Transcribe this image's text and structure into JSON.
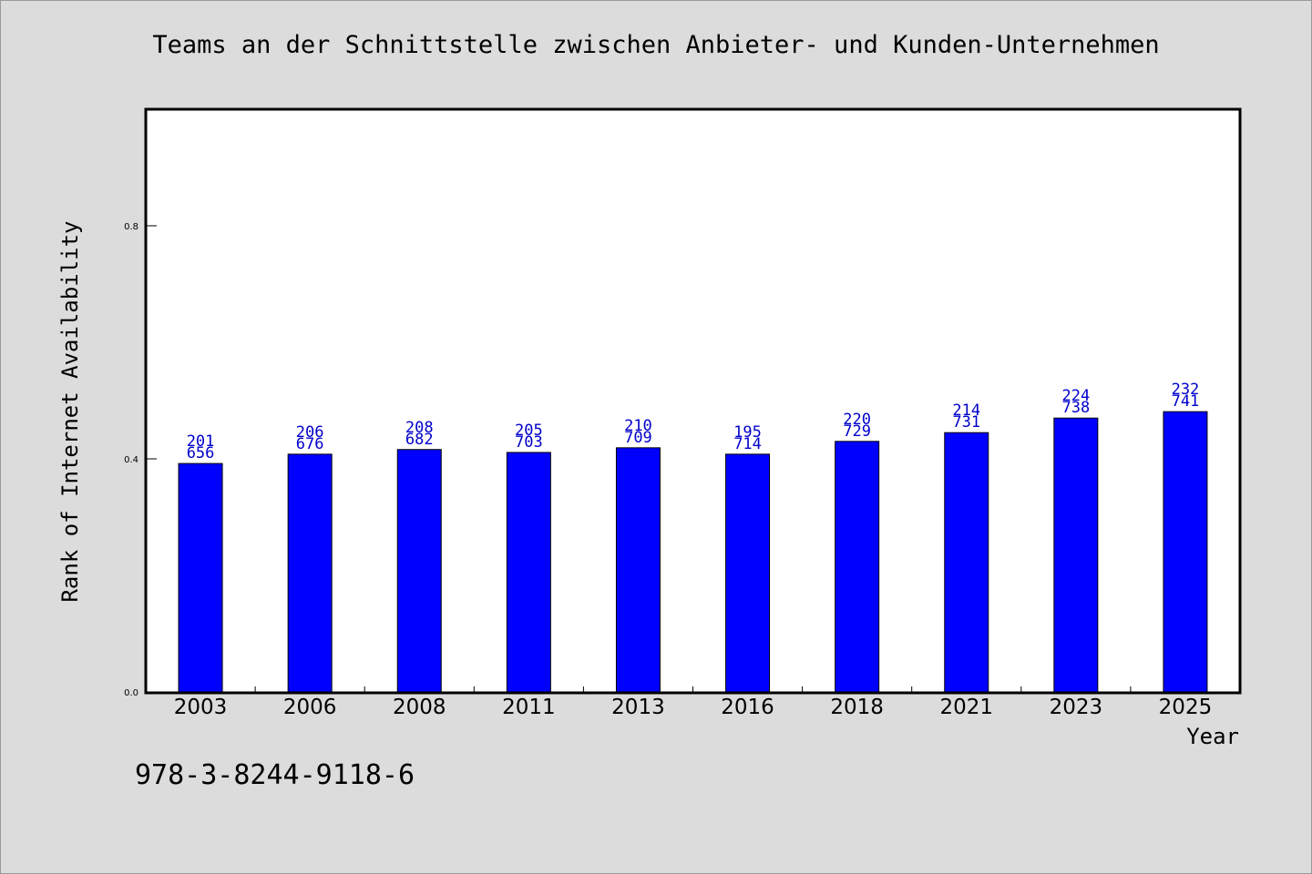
{
  "chart_data": {
    "type": "bar",
    "title": "Teams an der Schnittstelle zwischen Anbieter- und Kunden-Unternehmen",
    "xlabel": "Year",
    "ylabel": "Rank of Internet Availability",
    "categories": [
      "2003",
      "2006",
      "2008",
      "2011",
      "2013",
      "2016",
      "2018",
      "2021",
      "2023",
      "2025"
    ],
    "values": [
      0.392,
      0.408,
      0.416,
      0.411,
      0.419,
      0.408,
      0.43,
      0.445,
      0.47,
      0.481
    ],
    "data_labels": [
      [
        "201",
        "656"
      ],
      [
        "206",
        "676"
      ],
      [
        "208",
        "682"
      ],
      [
        "205",
        "703"
      ],
      [
        "210",
        "709"
      ],
      [
        "195",
        "714"
      ],
      [
        "220",
        "729"
      ],
      [
        "214",
        "731"
      ],
      [
        "224",
        "738"
      ],
      [
        "232",
        "741"
      ]
    ],
    "yticks": [
      0.0,
      0.4,
      0.8
    ],
    "ytick_labels": [
      "0.0",
      "0.4",
      "0.8"
    ],
    "ylim": [
      0,
      1.0
    ],
    "grid": false,
    "bar_color": "#0000ff",
    "label_color": "#0000cc"
  },
  "footnote": "978-3-8244-9118-6"
}
